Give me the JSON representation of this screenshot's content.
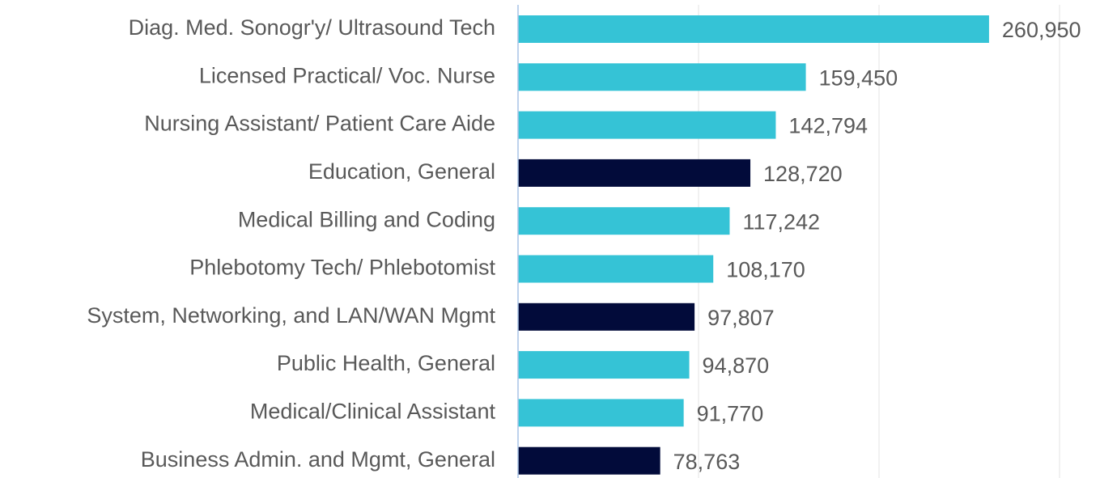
{
  "chart_data": {
    "type": "bar",
    "orientation": "horizontal",
    "categories": [
      "Diag. Med. Sonogr'y/ Ultrasound Tech",
      "Licensed Practical/ Voc. Nurse",
      "Nursing Assistant/ Patient Care Aide",
      "Education, General",
      "Medical Billing and Coding",
      "Phlebotomy Tech/ Phlebotomist",
      "System, Networking, and LAN/WAN Mgmt",
      "Public Health, General",
      "Medical/Clinical Assistant",
      "Business Admin. and Mgmt, General"
    ],
    "values": [
      260950,
      159450,
      142794,
      128720,
      117242,
      108170,
      97807,
      94870,
      91770,
      78763
    ],
    "value_labels": [
      "260,950",
      "159,450",
      "142,794",
      "128,720",
      "117,242",
      "108,170",
      "97,807",
      "94,870",
      "91,770",
      "78,763"
    ],
    "colors": [
      "#35c3d6",
      "#35c3d6",
      "#35c3d6",
      "#020b3a",
      "#35c3d6",
      "#35c3d6",
      "#020b3a",
      "#35c3d6",
      "#35c3d6",
      "#020b3a"
    ],
    "xlim": [
      0,
      300000
    ],
    "xticks": [
      0,
      100000,
      200000,
      300000
    ],
    "grid": true
  }
}
